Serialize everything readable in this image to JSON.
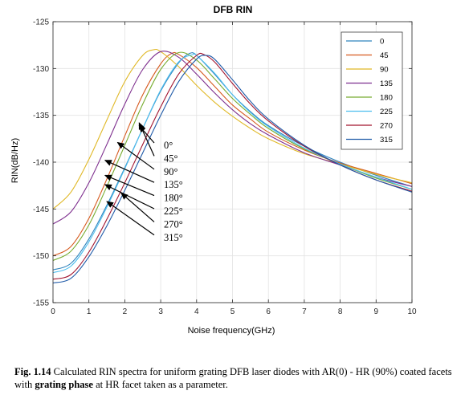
{
  "chart_data": {
    "type": "line",
    "title": "DFB RIN",
    "xlabel": "Noise frequency(GHz)",
    "ylabel": "RIN(dB/Hz)",
    "xlim": [
      0,
      10
    ],
    "ylim": [
      -155,
      -125
    ],
    "xticks": [
      0,
      1,
      2,
      3,
      4,
      5,
      6,
      7,
      8,
      9,
      10
    ],
    "yticks": [
      -125,
      -130,
      -135,
      -140,
      -145,
      -150,
      -155
    ],
    "legend_position": "top-right",
    "series": [
      {
        "name": "0",
        "color": "#2f83bd",
        "x": [
          0,
          0.5,
          1,
          1.5,
          2,
          2.5,
          3,
          3.5,
          3.8,
          4,
          4.5,
          5,
          5.5,
          6,
          7,
          8,
          9,
          10
        ],
        "y": [
          -151.5,
          -150.8,
          -148.2,
          -144.6,
          -140.6,
          -136.4,
          -132.4,
          -129.4,
          -128.4,
          -128.6,
          -130.6,
          -132.8,
          -134.6,
          -136.1,
          -138.3,
          -140.0,
          -141.4,
          -142.6
        ]
      },
      {
        "name": "45",
        "color": "#d65a1f",
        "x": [
          0,
          0.5,
          1,
          1.5,
          2,
          2.5,
          3,
          3.3,
          3.5,
          4,
          4.5,
          5,
          5.5,
          6,
          7,
          8,
          9,
          10
        ],
        "y": [
          -150.0,
          -149.0,
          -146.0,
          -141.8,
          -137.2,
          -132.8,
          -129.5,
          -128.4,
          -128.5,
          -129.9,
          -131.9,
          -133.9,
          -135.4,
          -136.8,
          -138.7,
          -140.1,
          -141.2,
          -142.3
        ]
      },
      {
        "name": "90",
        "color": "#e0b826",
        "x": [
          0,
          0.5,
          1,
          1.5,
          2,
          2.5,
          2.8,
          3,
          3.5,
          4,
          4.5,
          5,
          5.5,
          6,
          7,
          8,
          9,
          10
        ],
        "y": [
          -145.0,
          -143.2,
          -139.7,
          -135.5,
          -131.4,
          -128.6,
          -128.0,
          -128.2,
          -129.8,
          -131.8,
          -133.6,
          -135.1,
          -136.4,
          -137.5,
          -139.1,
          -140.2,
          -141.3,
          -142.2
        ]
      },
      {
        "name": "135",
        "color": "#7e2f8e",
        "x": [
          0,
          0.5,
          1,
          1.5,
          2,
          2.5,
          3,
          3.5,
          4,
          4.5,
          5,
          5.5,
          6,
          7,
          8,
          9,
          10
        ],
        "y": [
          -146.6,
          -145.3,
          -142.2,
          -138.1,
          -133.8,
          -130.1,
          -128.2,
          -128.8,
          -130.6,
          -132.6,
          -134.4,
          -135.9,
          -137.1,
          -139.0,
          -140.3,
          -141.6,
          -142.6
        ]
      },
      {
        "name": "180",
        "color": "#77ac30",
        "x": [
          0,
          0.5,
          1,
          1.5,
          2,
          2.5,
          3,
          3.5,
          4,
          4.5,
          5,
          5.5,
          6,
          7,
          8,
          9,
          10
        ],
        "y": [
          -150.5,
          -149.5,
          -146.7,
          -142.6,
          -138.2,
          -133.8,
          -130.1,
          -128.3,
          -129.1,
          -131.1,
          -133.2,
          -134.9,
          -136.4,
          -138.6,
          -140.2,
          -141.7,
          -142.9
        ]
      },
      {
        "name": "225",
        "color": "#4dbeee",
        "x": [
          0,
          0.5,
          1,
          1.5,
          2,
          2.5,
          3,
          3.5,
          3.9,
          4,
          4.5,
          5,
          5.5,
          6,
          7,
          8,
          9,
          10
        ],
        "y": [
          -151.8,
          -151.1,
          -148.5,
          -144.8,
          -140.7,
          -136.4,
          -132.3,
          -129.3,
          -128.5,
          -128.6,
          -130.5,
          -132.8,
          -134.7,
          -136.2,
          -138.5,
          -140.2,
          -141.6,
          -142.9
        ]
      },
      {
        "name": "270",
        "color": "#a2142f",
        "x": [
          0,
          0.5,
          1,
          1.5,
          2,
          2.5,
          3,
          3.5,
          4,
          4.2,
          4.5,
          5,
          5.5,
          6,
          7,
          8,
          9,
          10
        ],
        "y": [
          -152.5,
          -152.0,
          -149.6,
          -146.1,
          -142.2,
          -138.1,
          -134.1,
          -130.6,
          -128.6,
          -128.5,
          -129.3,
          -131.6,
          -133.8,
          -135.6,
          -138.3,
          -140.3,
          -141.9,
          -143.1
        ]
      },
      {
        "name": "315",
        "color": "#1f5aa8",
        "x": [
          0,
          0.5,
          1,
          1.5,
          2,
          2.5,
          3,
          3.5,
          4,
          4.25,
          4.5,
          5,
          5.5,
          6,
          7,
          8,
          9,
          10
        ],
        "y": [
          -152.9,
          -152.4,
          -150.1,
          -146.8,
          -143.0,
          -139.0,
          -135.0,
          -131.4,
          -129.0,
          -128.6,
          -129.0,
          -131.2,
          -133.5,
          -135.4,
          -138.2,
          -140.3,
          -141.9,
          -143.2
        ]
      }
    ],
    "annotations": [
      {
        "text": "0°",
        "target": [
          2.4,
          -136.1
        ]
      },
      {
        "text": "45°",
        "target": [
          2.4,
          -135.8
        ]
      },
      {
        "text": "90°",
        "target": [
          1.8,
          -137.9
        ]
      },
      {
        "text": "135°",
        "target": [
          1.45,
          -139.8
        ]
      },
      {
        "text": "180°",
        "target": [
          1.45,
          -141.4
        ]
      },
      {
        "text": "225°",
        "target": [
          1.45,
          -142.4
        ]
      },
      {
        "text": "270°",
        "target": [
          1.9,
          -143.3
        ]
      },
      {
        "text": "315°",
        "target": [
          1.5,
          -144.2
        ]
      }
    ]
  },
  "caption": {
    "label": "Fig. 1.14",
    "text_before": " Calculated RIN spectra for uniform grating DFB laser diodes with AR(0) - HR (90%) coated facets with ",
    "bold": "grating phase",
    "text_after": " at HR facet taken as a parameter."
  }
}
